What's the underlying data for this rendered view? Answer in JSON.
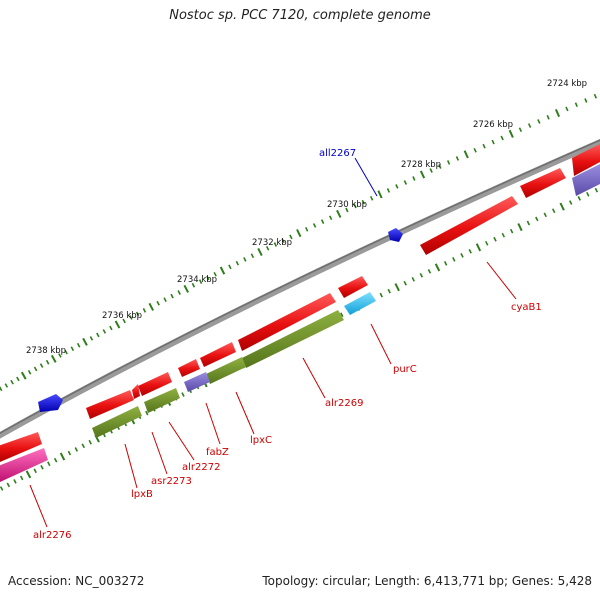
{
  "title": "Nostoc sp. PCC 7120, complete genome",
  "footer": {
    "accession": "Accession: NC_003272",
    "stats": "Topology: circular; Length: 6,413,771 bp; Genes: 5,428"
  },
  "scale_ticks": [
    {
      "label": "2724 kbp"
    },
    {
      "label": "2726 kbp"
    },
    {
      "label": "2728 kbp"
    },
    {
      "label": "2730 kbp"
    },
    {
      "label": "2732 kbp"
    },
    {
      "label": "2734 kbp"
    },
    {
      "label": "2736 kbp"
    },
    {
      "label": "2738 kbp"
    }
  ],
  "gene_labels": [
    {
      "text": "all2267",
      "color": "#0000cc"
    },
    {
      "text": "cyaB1",
      "color": "#cc0000"
    },
    {
      "text": "purC",
      "color": "#cc0000"
    },
    {
      "text": "alr2269",
      "color": "#cc0000"
    },
    {
      "text": "lpxC",
      "color": "#cc0000"
    },
    {
      "text": "fabZ",
      "color": "#cc0000"
    },
    {
      "text": "alr2272",
      "color": "#cc0000"
    },
    {
      "text": "asr2273",
      "color": "#cc0000"
    },
    {
      "text": "lpxB",
      "color": "#cc0000"
    },
    {
      "text": "alr2276",
      "color": "#cc0000"
    }
  ],
  "colors": {
    "backbone": "#808080",
    "tick": "#2e7d1a",
    "red_feature": "#ee1111",
    "green_feature": "#6b8e23",
    "cyan_feature": "#22bbee",
    "purple_feature": "#7060c0",
    "blue_feature": "#1010dd",
    "pink_feature": "#e0308a"
  }
}
